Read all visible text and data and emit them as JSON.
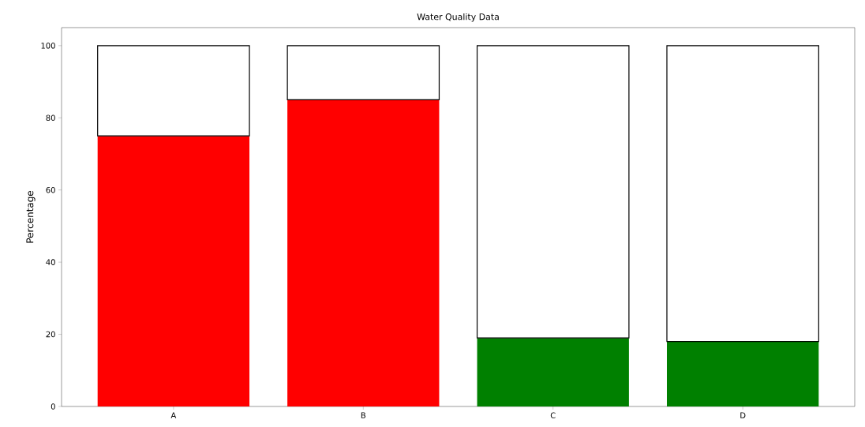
{
  "chart_data": {
    "type": "bar",
    "title": "Water Quality Data",
    "ylabel": "Percentage",
    "categories": [
      "A",
      "B",
      "C",
      "D"
    ],
    "stacked": true,
    "series": [
      {
        "colors": [
          "#ff0000",
          "#ff0000",
          "#008000",
          "#008000"
        ],
        "values": [
          75,
          85,
          19,
          18
        ]
      },
      {
        "color": "#ffffff",
        "values": [
          25,
          15,
          81,
          82
        ]
      }
    ],
    "ylim": [
      0,
      105
    ],
    "yticks": [
      0,
      20,
      40,
      60,
      80,
      100
    ],
    "grid": false
  }
}
